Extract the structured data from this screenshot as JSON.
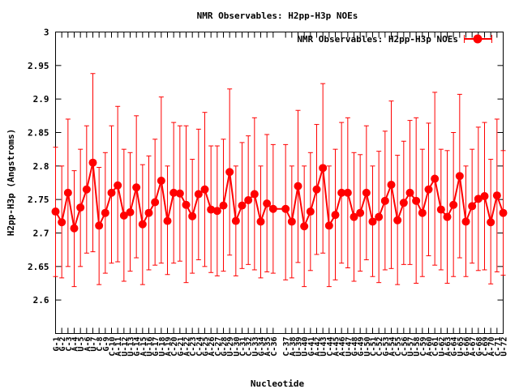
{
  "chart_data": {
    "type": "line",
    "title": "NMR Observables: H2pp-H3p NOEs",
    "xlabel": "Nucleotide",
    "ylabel": "H2pp-H3p (Angstroms)",
    "ylim": [
      2.55,
      3.0
    ],
    "yticks": [
      2.6,
      2.65,
      2.7,
      2.75,
      2.8,
      2.85,
      2.9,
      2.95,
      3.0
    ],
    "ytick_labels": [
      "2.6",
      "2.65",
      "2.7",
      "2.75",
      "2.8",
      "2.85",
      "2.9",
      "2.95",
      "3"
    ],
    "legend_position": "top-right",
    "grid": false,
    "categories": [
      "G-1",
      "G-2",
      "C-3",
      "A-4",
      "U-5",
      "A-6",
      "U-7",
      "C-8",
      "G-9",
      "C-10",
      "A-11",
      "U-12",
      "U-13",
      "G-14",
      "A-15",
      "U-16",
      "G-17",
      "U-18",
      "A-19",
      "C-20",
      "G-21",
      "A-22",
      "C-23",
      "C-24",
      "G-25",
      "A-26",
      "C-27",
      "G-28",
      "U-29",
      "U-30",
      "C-31",
      "C-32",
      "U-33",
      "G-34",
      "A-35",
      "C-36",
      "C-37",
      "A-38",
      "U-39",
      "U-40",
      "G-41",
      "A-42",
      "U-43",
      "C-44",
      "A-45",
      "A-46",
      "U-47",
      "G-48",
      "G-49",
      "U-50",
      "C-51",
      "C-52",
      "G-53",
      "A-54",
      "C-55",
      "C-56",
      "U-57",
      "U-58",
      "C-59",
      "A-60",
      "C-61",
      "U-62",
      "A-63",
      "G-64",
      "U-65",
      "G-66",
      "A-67",
      "G-68",
      "C-69",
      "A-70",
      "C-71",
      "U-72"
    ],
    "gap_after_index": 35,
    "series": [
      {
        "name": "NMR Observables: H2pp-H3p NOEs",
        "color": "#ff0000",
        "values": [
          2.732,
          2.716,
          2.76,
          2.707,
          2.738,
          2.765,
          2.805,
          2.711,
          2.73,
          2.76,
          2.771,
          2.726,
          2.731,
          2.768,
          2.713,
          2.73,
          2.746,
          2.778,
          2.718,
          2.76,
          2.759,
          2.742,
          2.725,
          2.758,
          2.765,
          2.735,
          2.733,
          2.741,
          2.791,
          2.718,
          2.741,
          2.749,
          2.758,
          2.717,
          2.744,
          2.736,
          2.736,
          2.717,
          2.77,
          2.71,
          2.732,
          2.765,
          2.797,
          2.711,
          2.727,
          2.76,
          2.76,
          2.724,
          2.73,
          2.76,
          2.717,
          2.724,
          2.748,
          2.772,
          2.719,
          2.745,
          2.76,
          2.748,
          2.73,
          2.765,
          2.781,
          2.735,
          2.724,
          2.742,
          2.785,
          2.717,
          2.74,
          2.751,
          2.755,
          2.716,
          2.756,
          2.73
        ],
        "err_hi": [
          2.828,
          2.8,
          2.87,
          2.793,
          2.825,
          2.86,
          2.938,
          2.798,
          2.82,
          2.86,
          2.889,
          2.825,
          2.82,
          2.875,
          2.802,
          2.815,
          2.84,
          2.903,
          2.8,
          2.865,
          2.86,
          2.86,
          2.81,
          2.855,
          2.88,
          2.83,
          2.83,
          2.84,
          2.915,
          2.8,
          2.835,
          2.845,
          2.872,
          2.8,
          2.847,
          2.832,
          2.832,
          2.8,
          2.883,
          2.8,
          2.82,
          2.862,
          2.923,
          2.8,
          2.825,
          2.865,
          2.872,
          2.82,
          2.817,
          2.86,
          2.8,
          2.822,
          2.852,
          2.897,
          2.816,
          2.837,
          2.868,
          2.872,
          2.825,
          2.864,
          2.91,
          2.825,
          2.823,
          2.85,
          2.907,
          2.8,
          2.825,
          2.858,
          2.865,
          2.81,
          2.87,
          2.823
        ],
        "err_lo": [
          2.635,
          2.633,
          2.65,
          2.62,
          2.65,
          2.67,
          2.672,
          2.623,
          2.64,
          2.655,
          2.657,
          2.628,
          2.643,
          2.663,
          2.623,
          2.645,
          2.652,
          2.655,
          2.638,
          2.655,
          2.658,
          2.626,
          2.64,
          2.66,
          2.65,
          2.641,
          2.636,
          2.643,
          2.667,
          2.636,
          2.647,
          2.653,
          2.645,
          2.633,
          2.642,
          2.64,
          2.63,
          2.633,
          2.656,
          2.62,
          2.644,
          2.668,
          2.67,
          2.62,
          2.63,
          2.655,
          2.648,
          2.628,
          2.643,
          2.66,
          2.635,
          2.626,
          2.645,
          2.647,
          2.623,
          2.653,
          2.653,
          2.625,
          2.635,
          2.666,
          2.652,
          2.645,
          2.625,
          2.635,
          2.663,
          2.635,
          2.655,
          2.644,
          2.645,
          2.624,
          2.642,
          2.637
        ]
      }
    ]
  }
}
